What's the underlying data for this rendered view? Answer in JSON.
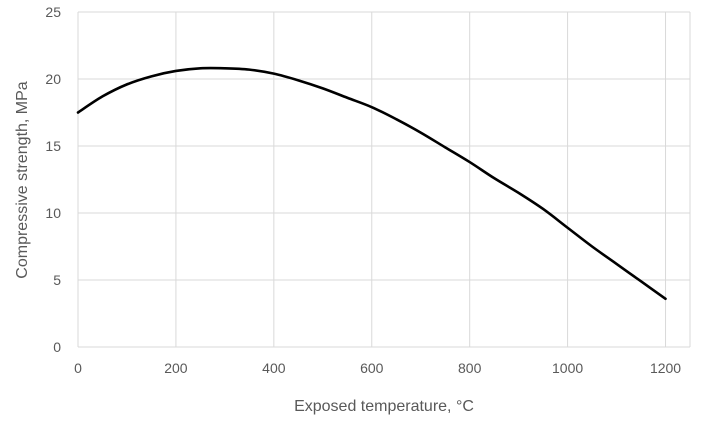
{
  "chart_data": {
    "type": "line",
    "title": "",
    "xlabel": "Exposed temperature, °C",
    "ylabel": "Compressive strength, MPa",
    "xlim": [
      0,
      1250
    ],
    "ylim": [
      0,
      25
    ],
    "xticks": [
      0,
      200,
      400,
      600,
      800,
      1000,
      1200
    ],
    "yticks": [
      0,
      5,
      10,
      15,
      20,
      25
    ],
    "grid": true,
    "legend": "none",
    "colors": {
      "series": "#000000",
      "grid": "#d9d9d9",
      "text": "#595959"
    },
    "series": [
      {
        "name": "Compressive strength",
        "x": [
          0,
          50,
          100,
          150,
          200,
          250,
          300,
          350,
          400,
          450,
          500,
          550,
          600,
          650,
          700,
          750,
          800,
          850,
          900,
          950,
          1000,
          1050,
          1100,
          1150,
          1200
        ],
        "y": [
          17.5,
          18.7,
          19.6,
          20.2,
          20.6,
          20.8,
          20.8,
          20.7,
          20.4,
          19.9,
          19.3,
          18.6,
          17.9,
          17.0,
          16.0,
          14.9,
          13.8,
          12.6,
          11.5,
          10.3,
          8.9,
          7.5,
          6.2,
          4.9,
          3.6
        ]
      }
    ]
  }
}
